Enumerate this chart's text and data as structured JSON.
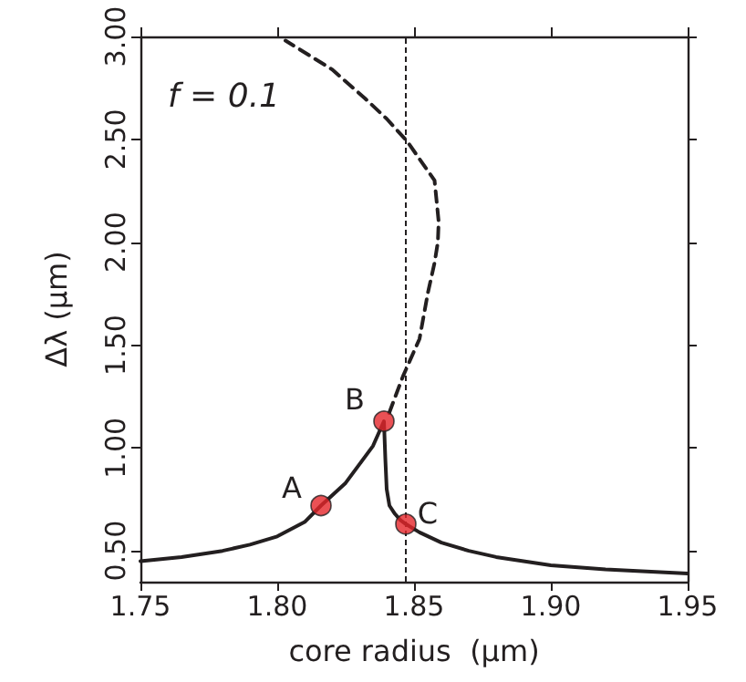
{
  "chart_data": {
    "type": "line",
    "xlabel": "core radius  (μm)",
    "ylabel": "Δλ (μm)",
    "xlim": [
      1.75,
      1.95
    ],
    "ylim": [
      0.35,
      3.0
    ],
    "xticks": [
      {
        "value": 1.75,
        "label": "1.75"
      },
      {
        "value": 1.8,
        "label": "1.80"
      },
      {
        "value": 1.85,
        "label": "1.85"
      },
      {
        "value": 1.9,
        "label": "1.90"
      },
      {
        "value": 1.95,
        "label": "1.95"
      }
    ],
    "yticks": [
      {
        "value": 0.5,
        "label": "0.50"
      },
      {
        "value": 1.0,
        "label": "1.00"
      },
      {
        "value": 1.5,
        "label": "1.50"
      },
      {
        "value": 2.0,
        "label": "2.00"
      },
      {
        "value": 2.5,
        "label": "2.50"
      },
      {
        "value": 3.0,
        "label": "3.00"
      }
    ],
    "series": [
      {
        "type": "line",
        "color": "#231f20",
        "line_style": "solid",
        "marker": "none",
        "x": [
          1.75,
          1.765,
          1.78,
          1.79,
          1.8,
          1.81,
          1.816,
          1.825,
          1.83,
          1.835,
          1.839,
          1.8395,
          1.84,
          1.841,
          1.843,
          1.845,
          1.847,
          1.852,
          1.86,
          1.87,
          1.88,
          1.9,
          1.92,
          1.95
        ],
        "values": [
          0.45,
          0.47,
          0.5,
          0.53,
          0.57,
          0.64,
          0.72,
          0.83,
          0.92,
          1.01,
          1.13,
          0.95,
          0.8,
          0.72,
          0.68,
          0.65,
          0.63,
          0.59,
          0.54,
          0.5,
          0.47,
          0.43,
          0.41,
          0.39
        ]
      },
      {
        "type": "line",
        "color": "#231f20",
        "line_style": "dashed",
        "marker": "none",
        "x": [
          1.8409,
          1.846,
          1.852,
          1.855,
          1.8575,
          1.8587,
          1.859,
          1.8575,
          1.8475,
          1.84,
          1.832,
          1.82,
          1.803
        ],
        "values": [
          1.17,
          1.35,
          1.53,
          1.75,
          1.9,
          2.0,
          2.1,
          2.3,
          2.49,
          2.6,
          2.7,
          2.84,
          2.98
        ]
      },
      {
        "type": "scatter",
        "color": "#e5262a",
        "marker": "circle",
        "x": [
          1.816,
          1.839,
          1.847
        ],
        "values": [
          0.72,
          1.13,
          0.63
        ]
      }
    ],
    "ref_lines": [
      {
        "axis": "x",
        "value": 1.847,
        "color": "#231f20",
        "line_style": "dashed"
      }
    ],
    "annotations": [
      "f = 0.1",
      {
        "text": "A",
        "x": 1.816,
        "y": 0.72
      },
      {
        "text": "B",
        "x": 1.839,
        "y": 1.13
      },
      {
        "text": "C",
        "x": 1.847,
        "y": 0.63
      }
    ]
  }
}
